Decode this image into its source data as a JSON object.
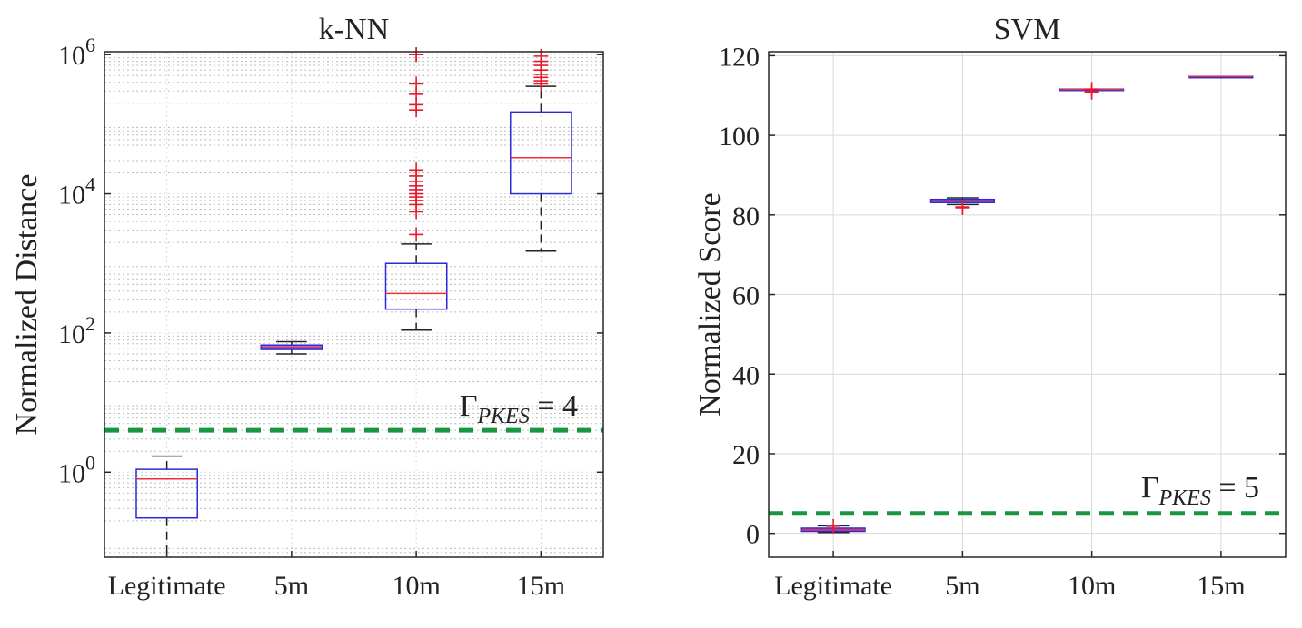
{
  "chart_data": [
    {
      "type": "box",
      "title": "k-NN",
      "xlabel": "",
      "ylabel": "Normalized Distance",
      "yscale": "log",
      "ylim": [
        0.06,
        1100000
      ],
      "yticks": [
        {
          "value": 1,
          "base": "10",
          "exp": "0"
        },
        {
          "value": 100,
          "base": "10",
          "exp": "2"
        },
        {
          "value": 10000,
          "base": "10",
          "exp": "4"
        },
        {
          "value": 1000000,
          "base": "10",
          "exp": "6"
        }
      ],
      "categories": [
        "Legitimate",
        "5m",
        "10m",
        "15m"
      ],
      "boxes": [
        {
          "category": "Legitimate",
          "whisker_low": 0.06,
          "q1": 0.22,
          "median": 0.8,
          "q3": 1.1,
          "whisker_high": 1.7,
          "outliers": []
        },
        {
          "category": "5m",
          "whisker_low": 50,
          "q1": 58,
          "median": 62,
          "q3": 67,
          "whisker_high": 75,
          "outliers": []
        },
        {
          "category": "10m",
          "whisker_low": 110,
          "q1": 220,
          "median": 370,
          "q3": 1000,
          "whisker_high": 1900,
          "outliers": [
            2600,
            5500,
            7000,
            8000,
            9000,
            10000,
            11500,
            13000,
            15000,
            18000,
            22000,
            160000,
            190000,
            270000,
            380000,
            1000000,
            1000000
          ]
        },
        {
          "category": "15m",
          "whisker_low": 1500,
          "q1": 10000,
          "median": 33000,
          "q3": 150000,
          "whisker_high": 350000,
          "outliers": [
            380000,
            420000,
            470000,
            520000,
            600000,
            700000,
            800000,
            950000
          ]
        }
      ],
      "threshold": {
        "value": 4,
        "label_main": "Γ",
        "label_sub": "PKES",
        "label_rest": " = 4",
        "color": "#1a9641"
      },
      "grid": true,
      "minor_grid": true
    },
    {
      "type": "box",
      "title": "SVM",
      "xlabel": "",
      "ylabel": "Normalized Score",
      "yscale": "linear",
      "ylim": [
        -6,
        121
      ],
      "yticks": [
        {
          "value": 0,
          "label": "0"
        },
        {
          "value": 20,
          "label": "20"
        },
        {
          "value": 40,
          "label": "40"
        },
        {
          "value": 60,
          "label": "60"
        },
        {
          "value": 80,
          "label": "80"
        },
        {
          "value": 100,
          "label": "100"
        },
        {
          "value": 120,
          "label": "120"
        }
      ],
      "categories": [
        "Legitimate",
        "5m",
        "10m",
        "15m"
      ],
      "boxes": [
        {
          "category": "Legitimate",
          "whisker_low": 0.2,
          "q1": 0.5,
          "median": 0.9,
          "q3": 1.3,
          "whisker_high": 1.9,
          "outliers": [
            1.8
          ]
        },
        {
          "category": "5m",
          "whisker_low": 82.6,
          "q1": 83.1,
          "median": 83.5,
          "q3": 83.9,
          "whisker_high": 84.3,
          "outliers": [
            81.8,
            82.0
          ]
        },
        {
          "category": "10m",
          "whisker_low": 111.5,
          "q1": 111.5,
          "median": 111.5,
          "q3": 111.6,
          "whisker_high": 111.6,
          "outliers": [
            110.8,
            111.0,
            111.6
          ]
        },
        {
          "category": "15m",
          "whisker_low": 114.8,
          "q1": 114.8,
          "median": 114.8,
          "q3": 114.8,
          "whisker_high": 114.8,
          "outliers": []
        }
      ],
      "threshold": {
        "value": 5,
        "label_main": "Γ",
        "label_sub": "PKES",
        "label_rest": " = 5",
        "color": "#1a9641"
      },
      "grid": true,
      "minor_grid": false
    }
  ],
  "colors": {
    "box": "#2b2bd6",
    "median": "#e8323a",
    "outlier": "#e8192c",
    "whisker": "#222222",
    "threshold": "#1a9641",
    "grid_major": "#d9d9d9",
    "grid_minor": "#bdbdbd",
    "box_fill_tight": "#b36ad8"
  }
}
